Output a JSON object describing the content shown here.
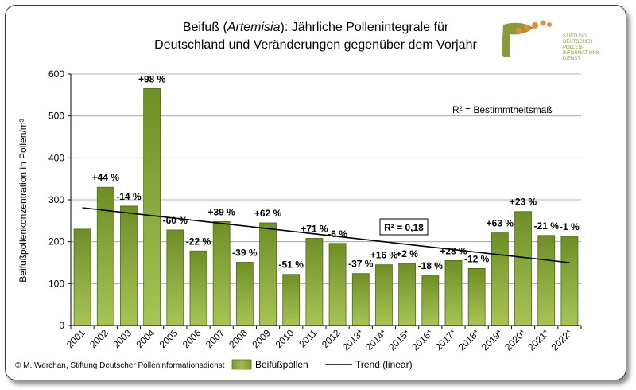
{
  "chart_data": {
    "type": "bar",
    "title_prefix": "Beifuß (",
    "title_italic": "Artemisia",
    "title_suffix": "): Jährliche Pollenintegrale für",
    "title_line2": "Deutschland und Veränderungen gegenüber dem Vorjahr",
    "ylabel": "Beifußpollenkonzentration in Pollen/m³",
    "xlabel": "",
    "ylim": [
      0,
      600
    ],
    "yticks": [
      0,
      100,
      200,
      300,
      400,
      500,
      600
    ],
    "categories": [
      "2001",
      "2002",
      "2003",
      "2004",
      "2005",
      "2006",
      "2007",
      "2008",
      "2009",
      "2010",
      "2011",
      "2012",
      "2013*",
      "2014*",
      "2015*",
      "2016*",
      "2017*",
      "2018*",
      "2019*",
      "2020*",
      "2021*",
      "2022*"
    ],
    "series": [
      {
        "name": "Beifußpollen",
        "color": "#7a9a2e",
        "values": [
          230,
          330,
          285,
          565,
          228,
          178,
          248,
          151,
          245,
          122,
          208,
          196,
          124,
          145,
          148,
          120,
          155,
          136,
          221,
          272,
          215,
          213
        ],
        "labels": [
          "",
          "+44 %",
          "-14 %",
          "+98 %",
          "-60 %",
          "-22 %",
          "+39 %",
          "-39 %",
          "+62 %",
          "-51 %",
          "+71 %",
          "-6 %",
          "-37 %",
          "+16 %",
          "+2 %",
          "-18 %",
          "+28 %",
          "-12 %",
          "+63 %",
          "+23 %",
          "-21 %",
          "-1 %"
        ]
      }
    ],
    "trend": {
      "name": "Trend (linear)",
      "start": 281,
      "end": 150,
      "color": "#000000"
    },
    "r2_label": "R² = 0,18",
    "r2_legend": "R² = Bestimmtheitsmaß",
    "legend_position": "bottom",
    "grid": true
  },
  "logo": {
    "line1": "STIFTUNG",
    "line2": "DEUTSCHER",
    "line3": "POLLEN-",
    "line4": "INFORMATIONS-",
    "line5": "DIENST"
  },
  "footer": {
    "copyright": "© M. Werchan, Stiftung Deutscher Polleninformationsdienst"
  },
  "colors": {
    "bar": "#7a9a2e",
    "bar_light": "#a9c24f",
    "logo_green": "#8a9a3a",
    "logo_orange": "#e8873a"
  }
}
